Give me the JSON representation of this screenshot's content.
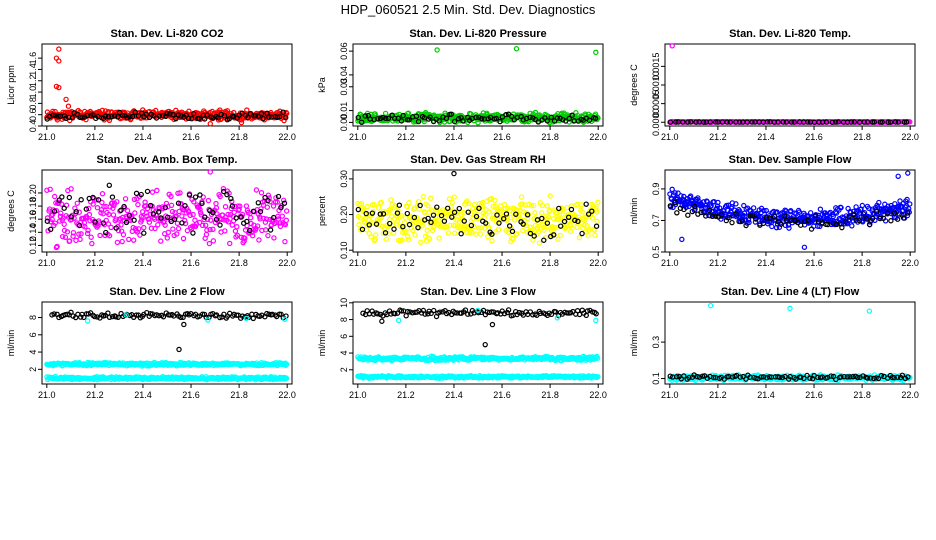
{
  "figure": {
    "title": "HDP_060521  2.5 Min. Std. Dev. Diagnostics"
  },
  "colors": {
    "black": "#000000",
    "red": "#ff0000",
    "green": "#00cc00",
    "magenta": "#ff00ff",
    "yellow": "#ffff00",
    "blue": "#0000ff",
    "cyan": "#00ffff"
  },
  "chart_data": [
    {
      "id": "co2",
      "type": "scatter",
      "title": "Stan. Dev. Li-820 CO2",
      "xlabel": "",
      "ylabel": "Licor ppm",
      "xlim": [
        20.98,
        22.02
      ],
      "ylim": [
        0.4,
        1.85
      ],
      "xticks": [
        "21.0",
        "21.2",
        "21.4",
        "21.6",
        "21.8",
        "22.0"
      ],
      "yticks": [
        "0.4",
        "0.6",
        "0.8",
        "1.0",
        "1.2",
        "1.4",
        "1.6"
      ],
      "series": [
        {
          "name": "bulk",
          "color": "red",
          "band": [
            0.5,
            0.68
          ],
          "n": 420,
          "seed": 11,
          "x_range": [
            21.0,
            22.0
          ],
          "shape": "flat"
        },
        {
          "name": "overlay",
          "color": "black",
          "band": [
            0.5,
            0.64
          ],
          "n": 90,
          "seed": 12,
          "x_range": [
            21.0,
            22.0
          ],
          "shape": "flat"
        },
        {
          "name": "spikes",
          "color": "red",
          "points": [
            [
              21.05,
              1.76
            ],
            [
              21.04,
              1.6
            ],
            [
              21.05,
              1.55
            ],
            [
              21.04,
              1.1
            ],
            [
              21.05,
              1.08
            ],
            [
              21.08,
              0.87
            ],
            [
              21.09,
              0.75
            ],
            [
              21.68,
              0.44
            ],
            [
              21.81,
              0.46
            ]
          ]
        }
      ]
    },
    {
      "id": "pressure",
      "type": "scatter",
      "title": "Stan. Dev. Li-820 Pressure",
      "xlabel": "",
      "ylabel": "kPa",
      "xlim": [
        20.98,
        22.02
      ],
      "ylim": [
        -0.003,
        0.066
      ],
      "xticks": [
        "21.0",
        "21.2",
        "21.4",
        "21.6",
        "21.8",
        "22.0"
      ],
      "yticks": [
        "0.00",
        "0.01",
        "0.03",
        "0.04",
        "0.06"
      ],
      "series": [
        {
          "name": "bulk",
          "color": "green",
          "band": [
            0.0,
            0.008
          ],
          "n": 420,
          "seed": 21,
          "x_range": [
            21.0,
            22.0
          ],
          "shape": "flat"
        },
        {
          "name": "overlay",
          "color": "black",
          "band": [
            0.0,
            0.007
          ],
          "n": 80,
          "seed": 22,
          "x_range": [
            21.0,
            22.0
          ],
          "shape": "flat"
        },
        {
          "name": "spikes",
          "color": "green",
          "points": [
            [
              21.33,
              0.061
            ],
            [
              21.66,
              0.062
            ],
            [
              21.99,
              0.059
            ]
          ]
        }
      ]
    },
    {
      "id": "temp",
      "type": "scatter",
      "title": "Stan. Dev. Li-820 Temp.",
      "xlabel": "",
      "ylabel": "degrees C",
      "xlim": [
        20.98,
        22.02
      ],
      "ylim": [
        -0.0001,
        0.0021
      ],
      "xticks": [
        "21.0",
        "21.2",
        "21.4",
        "21.6",
        "21.8",
        "22.0"
      ],
      "yticks": [
        "0.0000",
        "0.0005",
        "0.0010",
        "0.0015"
      ],
      "series": [
        {
          "name": "bulk",
          "color": "magenta",
          "band": [
            0.0,
            2e-05
          ],
          "n": 300,
          "seed": 31,
          "x_range": [
            21.0,
            22.0
          ],
          "shape": "flat"
        },
        {
          "name": "overlay",
          "color": "black",
          "band": [
            0.0,
            1e-05
          ],
          "n": 60,
          "seed": 32,
          "x_range": [
            21.0,
            22.0
          ],
          "shape": "flat"
        },
        {
          "name": "spikes",
          "color": "magenta",
          "points": [
            [
              21.01,
              0.00205
            ]
          ]
        }
      ]
    },
    {
      "id": "ambbox",
      "type": "scatter",
      "title": "Stan. Dev. Amb. Box Temp.",
      "xlabel": "",
      "ylabel": "degrees C",
      "xlim": [
        20.98,
        22.02
      ],
      "ylim": [
        0.11,
        0.235
      ],
      "xticks": [
        "21.0",
        "21.2",
        "21.4",
        "21.6",
        "21.8",
        "22.0"
      ],
      "yticks": [
        "0.12",
        "0.14",
        "0.16",
        "0.18",
        "0.20"
      ],
      "series": [
        {
          "name": "bulk",
          "color": "magenta",
          "band": [
            0.12,
            0.205
          ],
          "n": 380,
          "seed": 41,
          "x_range": [
            21.0,
            22.0
          ],
          "shape": "flat"
        },
        {
          "name": "overlay",
          "color": "black",
          "band": [
            0.13,
            0.215
          ],
          "n": 70,
          "seed": 42,
          "x_range": [
            21.0,
            22.0
          ],
          "shape": "flat"
        },
        {
          "name": "spikes",
          "color": "magenta",
          "points": [
            [
              21.68,
              0.232
            ],
            [
              21.04,
              0.117
            ]
          ]
        }
      ]
    },
    {
      "id": "rh",
      "type": "scatter",
      "title": "Stan. Dev. Gas Stream RH",
      "xlabel": "",
      "ylabel": "percent",
      "xlim": [
        20.98,
        22.02
      ],
      "ylim": [
        0.095,
        0.325
      ],
      "xticks": [
        "21.0",
        "21.2",
        "21.4",
        "21.6",
        "21.8",
        "22.0"
      ],
      "yticks": [
        "0.10",
        "0.20",
        "0.30"
      ],
      "series": [
        {
          "name": "bulk",
          "color": "yellow",
          "band": [
            0.12,
            0.25
          ],
          "n": 420,
          "seed": 51,
          "x_range": [
            21.0,
            22.0
          ],
          "shape": "flat"
        },
        {
          "name": "overlay",
          "color": "black",
          "band": [
            0.13,
            0.245
          ],
          "n": 70,
          "seed": 52,
          "x_range": [
            21.0,
            22.0
          ],
          "shape": "flat"
        },
        {
          "name": "spikes",
          "color": "black",
          "points": [
            [
              21.4,
              0.315
            ]
          ]
        }
      ]
    },
    {
      "id": "sampleflow",
      "type": "scatter",
      "title": "Stan. Dev. Sample Flow",
      "xlabel": "",
      "ylabel": "ml/min",
      "xlim": [
        20.98,
        22.02
      ],
      "ylim": [
        0.5,
        1.02
      ],
      "xticks": [
        "21.0",
        "21.2",
        "21.4",
        "21.6",
        "21.8",
        "22.0"
      ],
      "yticks": [
        "0.5",
        "0.7",
        "0.9"
      ],
      "series": [
        {
          "name": "bulk",
          "color": "blue",
          "band": [
            0.63,
            0.86
          ],
          "n": 420,
          "seed": 61,
          "x_range": [
            21.0,
            22.0
          ],
          "shape": "valley"
        },
        {
          "name": "overlay",
          "color": "black",
          "band": [
            0.63,
            0.8
          ],
          "n": 70,
          "seed": 62,
          "x_range": [
            21.0,
            22.0
          ],
          "shape": "valley"
        },
        {
          "name": "spikes",
          "color": "blue",
          "points": [
            [
              21.99,
              1.0
            ],
            [
              21.95,
              0.98
            ],
            [
              21.05,
              0.58
            ],
            [
              21.56,
              0.53
            ]
          ]
        }
      ]
    },
    {
      "id": "line2",
      "type": "scatter",
      "title": "Stan. Dev. Line 2 Flow",
      "xlabel": "",
      "ylabel": "ml/min",
      "xlim": [
        20.98,
        22.02
      ],
      "ylim": [
        0.3,
        9.8
      ],
      "xticks": [
        "21.0",
        "21.2",
        "21.4",
        "21.6",
        "21.8",
        "22.0"
      ],
      "yticks": [
        "2",
        "4",
        "6",
        "8"
      ],
      "series": [
        {
          "name": "upper",
          "color": "black",
          "band": [
            7.9,
            8.6
          ],
          "n": 110,
          "seed": 71,
          "x_range": [
            21.02,
            22.0
          ],
          "shape": "flat"
        },
        {
          "name": "mid",
          "color": "cyan",
          "band": [
            2.4,
            2.8
          ],
          "n": 320,
          "seed": 72,
          "x_range": [
            21.0,
            22.0
          ],
          "shape": "flat"
        },
        {
          "name": "low",
          "color": "cyan",
          "band": [
            0.8,
            1.15
          ],
          "n": 320,
          "seed": 73,
          "x_range": [
            21.0,
            22.0
          ],
          "shape": "flat"
        },
        {
          "name": "spikes",
          "color": "black",
          "points": [
            [
              21.55,
              4.3
            ],
            [
              21.57,
              7.2
            ]
          ]
        },
        {
          "name": "cyan-upper",
          "color": "cyan",
          "points": [
            [
              21.17,
              7.6
            ],
            [
              21.33,
              8.3
            ],
            [
              21.67,
              7.7
            ],
            [
              21.83,
              7.9
            ],
            [
              21.99,
              7.8
            ]
          ]
        }
      ]
    },
    {
      "id": "line3",
      "type": "scatter",
      "title": "Stan. Dev. Line 3 Flow",
      "xlabel": "",
      "ylabel": "ml/min",
      "xlim": [
        20.98,
        22.02
      ],
      "ylim": [
        0.3,
        10.1
      ],
      "xticks": [
        "21.0",
        "21.2",
        "21.4",
        "21.6",
        "21.8",
        "22.0"
      ],
      "yticks": [
        "2",
        "4",
        "6",
        "8",
        "10"
      ],
      "series": [
        {
          "name": "upper",
          "color": "black",
          "band": [
            8.4,
            9.2
          ],
          "n": 110,
          "seed": 81,
          "x_range": [
            21.02,
            22.0
          ],
          "shape": "flat"
        },
        {
          "name": "mid",
          "color": "cyan",
          "band": [
            3.1,
            3.6
          ],
          "n": 320,
          "seed": 82,
          "x_range": [
            21.0,
            22.0
          ],
          "shape": "flat"
        },
        {
          "name": "low",
          "color": "cyan",
          "band": [
            1.0,
            1.3
          ],
          "n": 320,
          "seed": 83,
          "x_range": [
            21.0,
            22.0
          ],
          "shape": "flat"
        },
        {
          "name": "spikes",
          "color": "black",
          "points": [
            [
              21.53,
              5.0
            ],
            [
              21.56,
              7.4
            ],
            [
              21.1,
              7.8
            ]
          ]
        },
        {
          "name": "cyan-upper",
          "color": "cyan",
          "points": [
            [
              21.17,
              7.9
            ],
            [
              21.5,
              9.1
            ],
            [
              21.83,
              8.2
            ],
            [
              21.99,
              7.9
            ]
          ]
        }
      ]
    },
    {
      "id": "line4",
      "type": "scatter",
      "title": "Stan. Dev. Line 4 (LT) Flow",
      "xlabel": "",
      "ylabel": "ml/min",
      "xlim": [
        20.98,
        22.02
      ],
      "ylim": [
        0.07,
        0.52
      ],
      "xticks": [
        "21.0",
        "21.2",
        "21.4",
        "21.6",
        "21.8",
        "22.0"
      ],
      "yticks": [
        "0.1",
        "0.3"
      ],
      "series": [
        {
          "name": "bulk",
          "color": "cyan",
          "band": [
            0.09,
            0.12
          ],
          "n": 380,
          "seed": 91,
          "x_range": [
            21.0,
            22.0
          ],
          "shape": "flat"
        },
        {
          "name": "overlay",
          "color": "black",
          "band": [
            0.093,
            0.12
          ],
          "n": 90,
          "seed": 92,
          "x_range": [
            21.0,
            22.0
          ],
          "shape": "flat"
        },
        {
          "name": "spikes",
          "color": "cyan",
          "points": [
            [
              21.17,
              0.5
            ],
            [
              21.5,
              0.485
            ],
            [
              21.83,
              0.47
            ]
          ]
        }
      ]
    }
  ]
}
